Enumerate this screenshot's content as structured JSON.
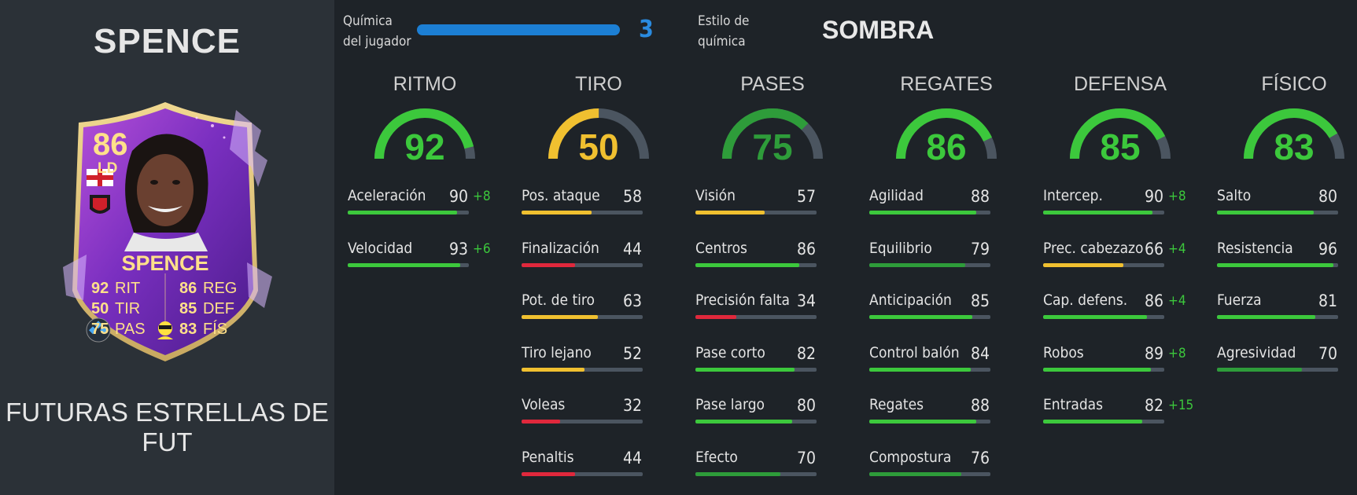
{
  "player": {
    "name": "SPENCE",
    "card_edition": "FUTURAS ESTRELLAS DE FUT"
  },
  "card": {
    "rating": "86",
    "position": "LD",
    "name": "SPENCE",
    "stats": [
      {
        "value": "92",
        "label": "RIT"
      },
      {
        "value": "50",
        "label": "TIR"
      },
      {
        "value": "75",
        "label": "PAS"
      },
      {
        "value": "86",
        "label": "REG"
      },
      {
        "value": "85",
        "label": "DEF"
      },
      {
        "value": "83",
        "label": "FÍS"
      }
    ],
    "flag_icon": "england-flag-icon",
    "club_icon": "rennes-crest-icon"
  },
  "chemistry": {
    "label": "Química del jugador",
    "value": "3",
    "fraction": 1.0
  },
  "chem_style": {
    "label": "Estilo de química",
    "value": "SOMBRA"
  },
  "colors": {
    "green": "#3cc83c",
    "dark_green": "#2e9c3a",
    "yellow": "#f0c030",
    "red": "#e0283c",
    "blue": "#1c7fd4",
    "track": "#4b5560"
  },
  "categories": [
    {
      "title": "RITMO",
      "value": "92",
      "stats": [
        {
          "name": "Aceleración",
          "value": "90",
          "bonus": "+8"
        },
        {
          "name": "Velocidad",
          "value": "93",
          "bonus": "+6"
        }
      ]
    },
    {
      "title": "TIRO",
      "value": "50",
      "stats": [
        {
          "name": "Pos. ataque",
          "value": "58",
          "bonus": ""
        },
        {
          "name": "Finalización",
          "value": "44",
          "bonus": ""
        },
        {
          "name": "Pot. de tiro",
          "value": "63",
          "bonus": ""
        },
        {
          "name": "Tiro lejano",
          "value": "52",
          "bonus": ""
        },
        {
          "name": "Voleas",
          "value": "32",
          "bonus": ""
        },
        {
          "name": "Penaltis",
          "value": "44",
          "bonus": ""
        }
      ]
    },
    {
      "title": "PASES",
      "value": "75",
      "stats": [
        {
          "name": "Visión",
          "value": "57",
          "bonus": ""
        },
        {
          "name": "Centros",
          "value": "86",
          "bonus": ""
        },
        {
          "name": "Precisión falta",
          "value": "34",
          "bonus": ""
        },
        {
          "name": "Pase corto",
          "value": "82",
          "bonus": ""
        },
        {
          "name": "Pase largo",
          "value": "80",
          "bonus": ""
        },
        {
          "name": "Efecto",
          "value": "70",
          "bonus": ""
        }
      ]
    },
    {
      "title": "REGATES",
      "value": "86",
      "stats": [
        {
          "name": "Agilidad",
          "value": "88",
          "bonus": ""
        },
        {
          "name": "Equilibrio",
          "value": "79",
          "bonus": ""
        },
        {
          "name": "Anticipación",
          "value": "85",
          "bonus": ""
        },
        {
          "name": "Control balón",
          "value": "84",
          "bonus": ""
        },
        {
          "name": "Regates",
          "value": "88",
          "bonus": ""
        },
        {
          "name": "Compostura",
          "value": "76",
          "bonus": ""
        }
      ]
    },
    {
      "title": "DEFENSA",
      "value": "85",
      "stats": [
        {
          "name": "Intercep.",
          "value": "90",
          "bonus": "+8"
        },
        {
          "name": "Prec. cabezazo",
          "value": "66",
          "bonus": "+4"
        },
        {
          "name": "Cap. defens.",
          "value": "86",
          "bonus": "+4"
        },
        {
          "name": "Robos",
          "value": "89",
          "bonus": "+8"
        },
        {
          "name": "Entradas",
          "value": "82",
          "bonus": "+15"
        }
      ]
    },
    {
      "title": "FÍSICO",
      "value": "83",
      "stats": [
        {
          "name": "Salto",
          "value": "80",
          "bonus": ""
        },
        {
          "name": "Resistencia",
          "value": "96",
          "bonus": ""
        },
        {
          "name": "Fuerza",
          "value": "81",
          "bonus": ""
        },
        {
          "name": "Agresividad",
          "value": "70",
          "bonus": ""
        }
      ]
    }
  ]
}
